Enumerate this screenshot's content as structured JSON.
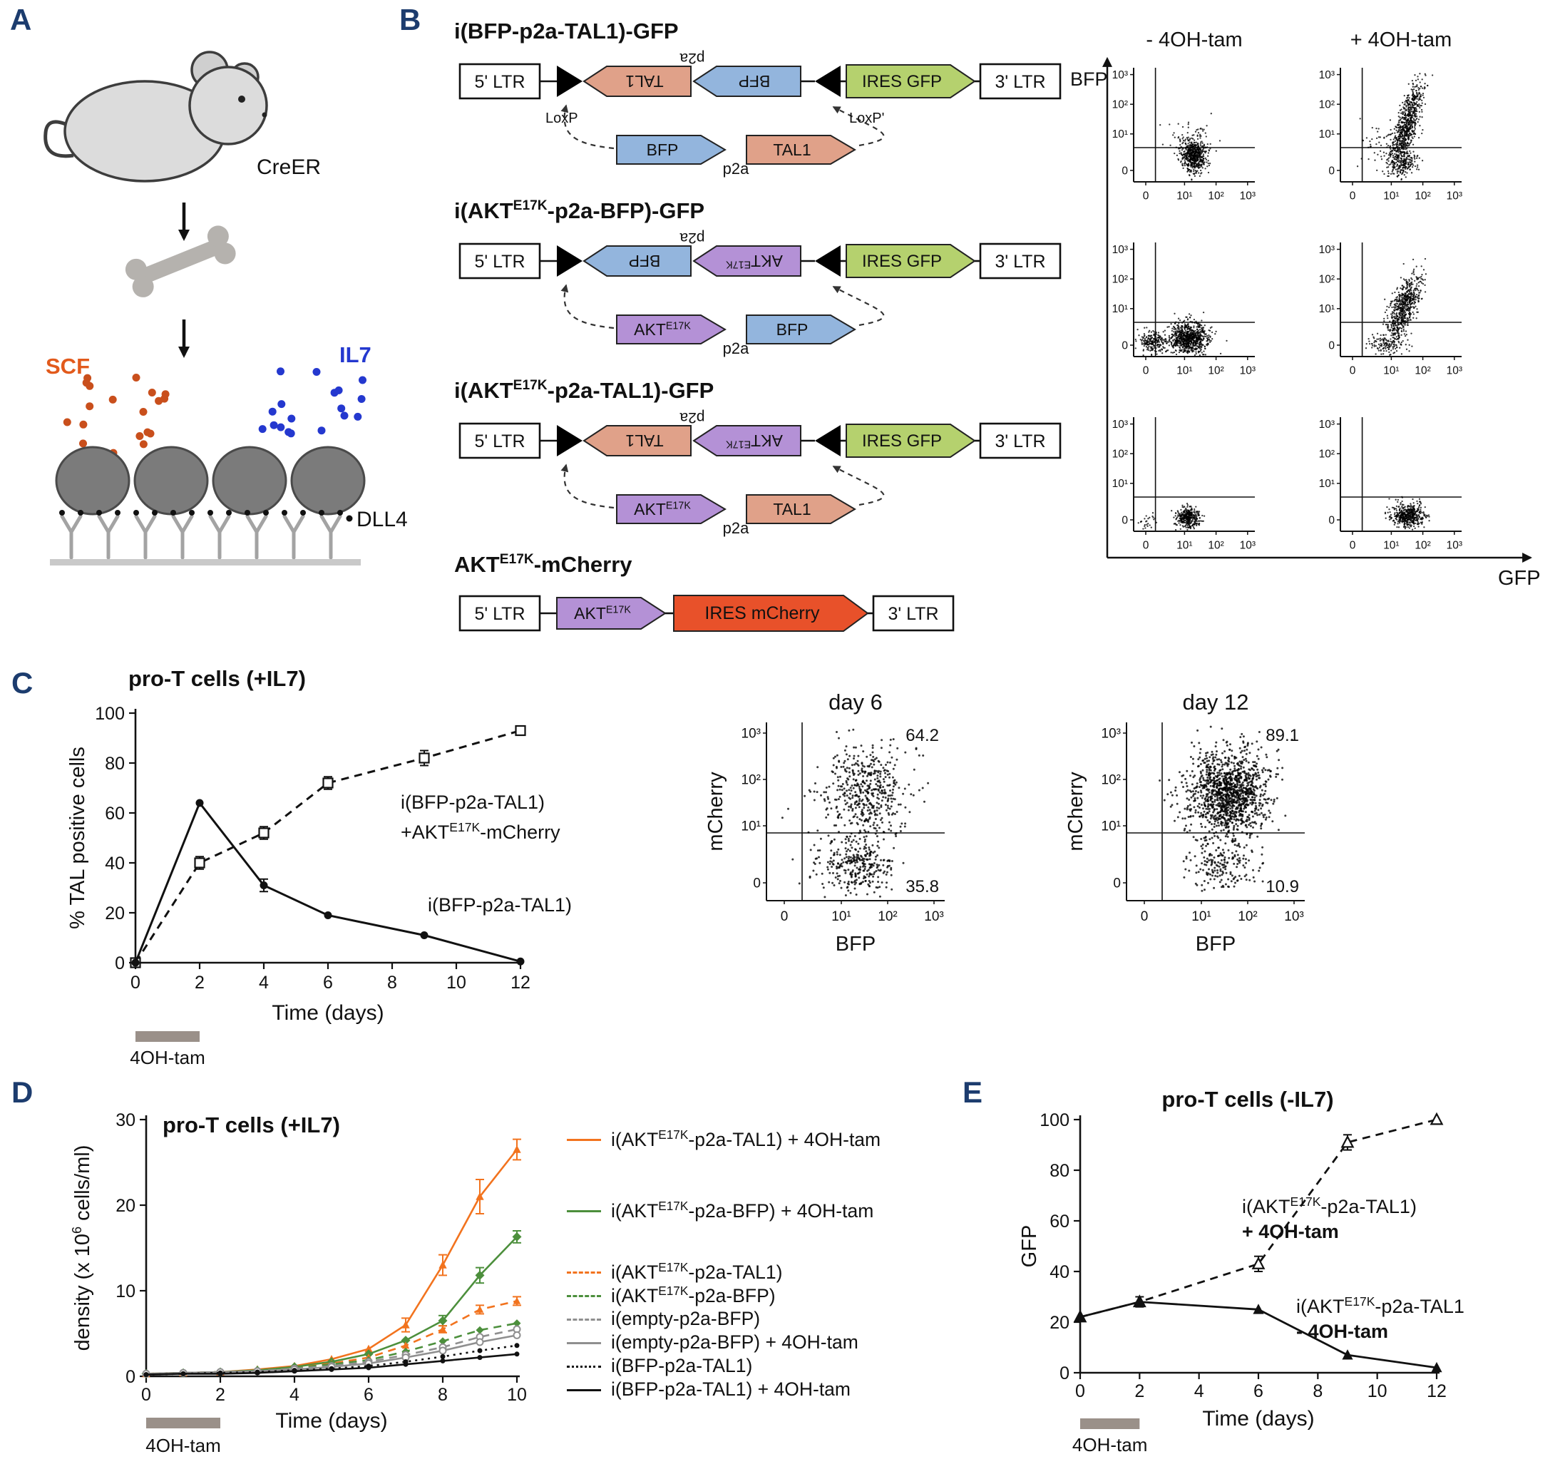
{
  "colors": {
    "panel_label": "#1C3C6E",
    "scf": "#E25A1C",
    "scf_dot": "#C94F1C",
    "il7": "#2438CF",
    "il7_dot": "#2438CF",
    "bfp": "#93B5DD",
    "tal1": "#E0A189",
    "akt": "#B491D6",
    "gfp_arrow": "#B5D16E",
    "mcherry_arrow": "#E8512A",
    "tam_bar": "#9A9089",
    "series_orange": "#F2731E",
    "series_green": "#4C8F3C",
    "series_gray": "#8F8F8F",
    "series_black": "#111111"
  },
  "panels": {
    "A": {
      "label": "A",
      "creer": "CreER",
      "scf": "SCF",
      "il7": "IL7",
      "dll4": "DLL4"
    },
    "B": {
      "label": "B",
      "constructs": [
        {
          "title": "i(BFP-p2a-TAL1)-GFP",
          "ltr5": "5' LTR",
          "ltr3": "3' LTR",
          "p2a": "p2a",
          "inverted": [
            {
              "label": "TAL1",
              "color": "#E0A189"
            },
            {
              "label": "BFP",
              "color": "#93B5DD"
            }
          ],
          "ires": {
            "label": "IRES GFP",
            "color": "#B5D16E"
          },
          "flipped": [
            {
              "label": "BFP",
              "color": "#93B5DD"
            },
            {
              "label": "TAL1",
              "color": "#E0A189"
            }
          ],
          "loxp": [
            "LoxP",
            "LoxP'"
          ]
        },
        {
          "title": "i(AKT^{E17K}-p2a-BFP)-GFP",
          "ltr5": "5' LTR",
          "ltr3": "3' LTR",
          "p2a": "p2a",
          "inverted": [
            {
              "label": "BFP",
              "color": "#93B5DD"
            },
            {
              "label": "AKT^{E17K}",
              "color": "#B491D6"
            }
          ],
          "ires": {
            "label": "IRES GFP",
            "color": "#B5D16E"
          },
          "flipped": [
            {
              "label": "AKT^{E17K}",
              "color": "#B491D6"
            },
            {
              "label": "BFP",
              "color": "#93B5DD"
            }
          ]
        },
        {
          "title": "i(AKT^{E17K}-p2a-TAL1)-GFP",
          "ltr5": "5' LTR",
          "ltr3": "3' LTR",
          "p2a": "p2a",
          "inverted": [
            {
              "label": "TAL1",
              "color": "#E0A189"
            },
            {
              "label": "AKT^{E17K}",
              "color": "#B491D6"
            }
          ],
          "ires": {
            "label": "IRES GFP",
            "color": "#B5D16E"
          },
          "flipped": [
            {
              "label": "AKT^{E17K}",
              "color": "#B491D6"
            },
            {
              "label": "TAL1",
              "color": "#E0A189"
            }
          ]
        },
        {
          "title": "AKT^{E17K}-mCherry",
          "ltr5": "5' LTR",
          "ltr3": "3' LTR",
          "simple": [
            {
              "label": "AKT^{E17K}",
              "color": "#B491D6"
            }
          ],
          "ires": {
            "label": "IRES mCherry",
            "color": "#E8512A"
          }
        }
      ],
      "flow": {
        "col_headers": [
          "- 4OH-tam",
          "+ 4OH-tam"
        ],
        "y_axis": "BFP",
        "x_axis": "GFP"
      }
    },
    "C": {
      "label": "C",
      "title": "pro-T cells (+IL7)",
      "ann1_line1": "i(BFP-p2a-TAL1)",
      "ann1_line2": "+AKT^{E17K}-mCherry",
      "ann2": "i(BFP-p2a-TAL1)"
    },
    "D": {
      "label": "D",
      "title": "pro-T cells (+IL7)",
      "legend": [
        {
          "label": "i(AKT^{E17K}-p2a-TAL1) + 4OH-tam",
          "color": "#F2731E",
          "style": "solid"
        },
        {
          "label": "i(AKT^{E17K}-p2a-BFP) + 4OH-tam",
          "color": "#4C8F3C",
          "style": "solid"
        },
        {
          "label": "i(AKT^{E17K}-p2a-TAL1)",
          "color": "#F2731E",
          "style": "dashed"
        },
        {
          "label": "i(AKT^{E17K}-p2a-BFP)",
          "color": "#4C8F3C",
          "style": "dashed"
        },
        {
          "label": "i(empty-p2a-BFP)",
          "color": "#8F8F8F",
          "style": "dashed"
        },
        {
          "label": "i(empty-p2a-BFP) + 4OH-tam",
          "color": "#8F8F8F",
          "style": "solid"
        },
        {
          "label": "i(BFP-p2a-TAL1)",
          "color": "#111111",
          "style": "dotted"
        },
        {
          "label": "i(BFP-p2a-TAL1) + 4OH-tam",
          "color": "#111111",
          "style": "solid"
        }
      ]
    },
    "E": {
      "label": "E",
      "title": "pro-T cells (-IL7)",
      "ann1_line1": "i(AKT^{E17K}-p2a-TAL1)",
      "ann1_line2": "+ 4OH-tam",
      "ann2_line1": "i(AKT^{E17K}-p2a-TAL1",
      "ann2_line2": "- 4OH-tam"
    }
  },
  "chart_data": [
    {
      "id": "chartC",
      "type": "line",
      "title": "pro-T cells (+IL7)",
      "xlabel": "Time (days)",
      "ylabel": "% TAL positive cells",
      "xlim": [
        0,
        12
      ],
      "ylim": [
        0,
        100
      ],
      "xticks": [
        0,
        2,
        4,
        6,
        8,
        10,
        12
      ],
      "yticks": [
        0,
        20,
        40,
        60,
        80,
        100
      ],
      "tam_bar": {
        "from": 0,
        "to": 2,
        "label": "4OH-tam"
      },
      "series": [
        {
          "name": "i(BFP-p2a-TAL1) + AKT^{E17K}-mCherry",
          "color": "#111111",
          "line_style": "dashed",
          "marker": "square-open",
          "msize": 6.5,
          "x": [
            0,
            2,
            4,
            6,
            9,
            12
          ],
          "y": [
            0,
            40,
            52,
            72,
            82,
            93
          ],
          "err": [
            0,
            2.5,
            2.5,
            2.5,
            3,
            1.5
          ]
        },
        {
          "name": "i(BFP-p2a-TAL1)",
          "color": "#111111",
          "line_style": "solid",
          "marker": "circle-filled",
          "msize": 5.5,
          "x": [
            0,
            2,
            4,
            6,
            9,
            12
          ],
          "y": [
            0,
            64,
            31,
            19,
            11,
            0.5
          ],
          "err": [
            0,
            0,
            2.5,
            0,
            0,
            0
          ]
        }
      ]
    },
    {
      "id": "chartD",
      "type": "line",
      "title": "pro-T cells (+IL7)",
      "xlabel": "Time (days)",
      "ylabel": "density (x 10^{6} cells/ml)",
      "xlim": [
        0,
        10
      ],
      "ylim": [
        0,
        30
      ],
      "xticks": [
        0,
        2,
        4,
        6,
        8,
        10
      ],
      "yticks": [
        0,
        10,
        20,
        30
      ],
      "tam_bar": {
        "from": 0,
        "to": 2,
        "label": "4OH-tam"
      },
      "x": [
        0,
        1,
        2,
        3,
        4,
        5,
        6,
        7,
        8,
        9,
        10
      ],
      "series": [
        {
          "name": "i(AKT^{E17K}-p2a-TAL1) + 4OH-tam",
          "color": "#F2731E",
          "line_style": "solid",
          "marker": "triangle-filled",
          "msize": 6,
          "y": [
            0.3,
            0.4,
            0.5,
            0.8,
            1.2,
            2,
            3.2,
            6,
            13,
            21,
            26.5
          ],
          "err": [
            0,
            0,
            0,
            0,
            0,
            0,
            0,
            0.8,
            1.2,
            2,
            1.2
          ]
        },
        {
          "name": "i(AKT^{E17K}-p2a-BFP) + 4OH-tam",
          "color": "#4C8F3C",
          "line_style": "solid",
          "marker": "diamond-filled",
          "msize": 6.5,
          "y": [
            0.3,
            0.4,
            0.5,
            0.7,
            1.1,
            1.7,
            2.6,
            4.2,
            6.5,
            11.8,
            16.3
          ],
          "err": [
            0,
            0,
            0,
            0,
            0,
            0,
            0,
            0,
            0.6,
            0.9,
            0.7
          ]
        },
        {
          "name": "i(AKT^{E17K}-p2a-TAL1)",
          "color": "#F2731E",
          "line_style": "dashed",
          "marker": "triangle-filled",
          "msize": 5.5,
          "y": [
            0.3,
            0.4,
            0.5,
            0.7,
            1,
            1.5,
            2.2,
            3.6,
            5.5,
            7.8,
            8.8
          ],
          "err": [
            0,
            0,
            0,
            0,
            0,
            0,
            0,
            0,
            0.4,
            0.5,
            0.5
          ]
        },
        {
          "name": "i(AKT^{E17K}-p2a-BFP)",
          "color": "#4C8F3C",
          "line_style": "dashed",
          "marker": "diamond-filled",
          "msize": 5.5,
          "y": [
            0.3,
            0.4,
            0.5,
            0.7,
            1,
            1.4,
            1.9,
            2.9,
            4.1,
            5.4,
            6.2
          ]
        },
        {
          "name": "i(empty-p2a-BFP)",
          "color": "#8F8F8F",
          "line_style": "dashed",
          "marker": "circle-open",
          "msize": 4.5,
          "y": [
            0.3,
            0.4,
            0.5,
            0.6,
            0.9,
            1.2,
            1.7,
            2.5,
            3.4,
            4.6,
            5.5
          ]
        },
        {
          "name": "i(empty-p2a-BFP) + 4OH-tam",
          "color": "#8F8F8F",
          "line_style": "solid",
          "marker": "circle-open",
          "msize": 4.5,
          "y": [
            0.3,
            0.4,
            0.5,
            0.6,
            0.8,
            1.1,
            1.5,
            2.2,
            3,
            4,
            4.8
          ]
        },
        {
          "name": "i(BFP-p2a-TAL1)",
          "color": "#111111",
          "line_style": "dotted",
          "marker": "circle-filled",
          "msize": 3.5,
          "y": [
            0.2,
            0.3,
            0.4,
            0.5,
            0.7,
            0.9,
            1.2,
            1.7,
            2.3,
            3,
            3.6
          ]
        },
        {
          "name": "i(BFP-p2a-TAL1) + 4OH-tam",
          "color": "#111111",
          "line_style": "solid",
          "marker": "circle-filled",
          "msize": 3.5,
          "y": [
            0.2,
            0.3,
            0.3,
            0.4,
            0.6,
            0.8,
            1,
            1.4,
            1.8,
            2.2,
            2.6
          ]
        }
      ]
    },
    {
      "id": "chartE",
      "type": "line",
      "title": "pro-T cells (-IL7)",
      "xlabel": "Time (days)",
      "ylabel": "GFP",
      "xlim": [
        0,
        12
      ],
      "ylim": [
        0,
        100
      ],
      "xticks": [
        0,
        2,
        4,
        6,
        8,
        10,
        12
      ],
      "yticks": [
        0,
        20,
        40,
        60,
        80,
        100
      ],
      "tam_bar": {
        "from": 0,
        "to": 2,
        "label": "4OH-tam"
      },
      "series": [
        {
          "name": "i(AKT^{E17K}-p2a-TAL1) + 4OH-tam",
          "color": "#111111",
          "line_style": "dashed",
          "marker": "triangle-open",
          "msize": 8,
          "x": [
            0,
            2,
            6,
            9,
            12
          ],
          "y": [
            22,
            28,
            43,
            91,
            100
          ],
          "err": [
            0,
            2,
            3,
            3,
            0
          ]
        },
        {
          "name": "i(AKT^{E17K}-p2a-TAL1) - 4OH-tam",
          "color": "#111111",
          "line_style": "solid",
          "marker": "triangle-filled",
          "msize": 8,
          "x": [
            0,
            2,
            6,
            9,
            12
          ],
          "y": [
            22,
            28,
            25,
            7,
            2
          ]
        }
      ]
    },
    {
      "id": "flow_b1_neg",
      "type": "scatter",
      "tick_labels": [
        "0",
        "10¹",
        "10²",
        "10³"
      ],
      "gate": {
        "x": 0.18,
        "y": 0.3
      },
      "clusters": [
        {
          "cx": 0.5,
          "cy": 0.22,
          "sx": 0.05,
          "sy": 0.07,
          "rot": 0,
          "n": 550
        },
        {
          "cx": 0.47,
          "cy": 0.36,
          "sx": 0.09,
          "sy": 0.08,
          "rot": 0,
          "n": 80
        }
      ]
    },
    {
      "id": "flow_b1_pos",
      "type": "scatter",
      "tick_labels": [
        "0",
        "10¹",
        "10²",
        "10³"
      ],
      "gate": {
        "x": 0.18,
        "y": 0.3
      },
      "clusters": [
        {
          "cx": 0.55,
          "cy": 0.5,
          "sx": 0.042,
          "sy": 0.2,
          "rot": -15,
          "n": 720
        },
        {
          "cx": 0.52,
          "cy": 0.17,
          "sx": 0.055,
          "sy": 0.06,
          "rot": 0,
          "n": 200
        },
        {
          "cx": 0.32,
          "cy": 0.3,
          "sx": 0.09,
          "sy": 0.09,
          "rot": 0,
          "n": 45
        }
      ]
    },
    {
      "id": "flow_b2_neg",
      "type": "scatter",
      "tick_labels": [
        "0",
        "10¹",
        "10²",
        "10³"
      ],
      "gate": {
        "x": 0.18,
        "y": 0.3
      },
      "clusters": [
        {
          "cx": 0.45,
          "cy": 0.16,
          "sx": 0.085,
          "sy": 0.07,
          "rot": 0,
          "n": 820
        },
        {
          "cx": 0.16,
          "cy": 0.12,
          "sx": 0.06,
          "sy": 0.05,
          "rot": 0,
          "n": 200
        }
      ]
    },
    {
      "id": "flow_b2_pos",
      "type": "scatter",
      "tick_labels": [
        "0",
        "10¹",
        "10²",
        "10³"
      ],
      "gate": {
        "x": 0.18,
        "y": 0.3
      },
      "clusters": [
        {
          "cx": 0.52,
          "cy": 0.42,
          "sx": 0.05,
          "sy": 0.16,
          "rot": -18,
          "n": 660
        },
        {
          "cx": 0.38,
          "cy": 0.1,
          "sx": 0.09,
          "sy": 0.045,
          "rot": 0,
          "n": 110
        }
      ]
    },
    {
      "id": "flow_b3_neg",
      "type": "scatter",
      "tick_labels": [
        "0",
        "10¹",
        "10²",
        "10³"
      ],
      "gate": {
        "x": 0.18,
        "y": 0.3
      },
      "clusters": [
        {
          "cx": 0.45,
          "cy": 0.12,
          "sx": 0.05,
          "sy": 0.045,
          "rot": 0,
          "n": 360
        },
        {
          "cx": 0.12,
          "cy": 0.1,
          "sx": 0.045,
          "sy": 0.04,
          "rot": 0,
          "n": 25
        }
      ]
    },
    {
      "id": "flow_b3_pos",
      "type": "scatter",
      "tick_labels": [
        "0",
        "10¹",
        "10²",
        "10³"
      ],
      "gate": {
        "x": 0.18,
        "y": 0.3
      },
      "clusters": [
        {
          "cx": 0.56,
          "cy": 0.14,
          "sx": 0.07,
          "sy": 0.055,
          "rot": 0,
          "n": 480
        }
      ]
    },
    {
      "id": "flow_day6",
      "type": "scatter",
      "title": "day 6",
      "xlabel": "BFP",
      "ylabel": "mCherry",
      "tick_labels": [
        "0",
        "10¹",
        "10²",
        "10³"
      ],
      "gate": {
        "x": 0.2,
        "y": 0.38
      },
      "corner_values": [
        {
          "label": "64.2",
          "corner": "tr"
        },
        {
          "label": "35.8",
          "corner": "br"
        }
      ],
      "clusters": [
        {
          "cx": 0.56,
          "cy": 0.62,
          "sx": 0.12,
          "sy": 0.13,
          "rot": 0,
          "n": 480
        },
        {
          "cx": 0.5,
          "cy": 0.2,
          "sx": 0.11,
          "sy": 0.08,
          "rot": 0,
          "n": 310
        }
      ]
    },
    {
      "id": "flow_day12",
      "type": "scatter",
      "title": "day 12",
      "xlabel": "BFP",
      "ylabel": "mCherry",
      "tick_labels": [
        "0",
        "10¹",
        "10²",
        "10³"
      ],
      "gate": {
        "x": 0.2,
        "y": 0.38
      },
      "corner_values": [
        {
          "label": "89.1",
          "corner": "tr"
        },
        {
          "label": "10.9",
          "corner": "br"
        }
      ],
      "clusters": [
        {
          "cx": 0.57,
          "cy": 0.6,
          "sx": 0.115,
          "sy": 0.125,
          "rot": 0,
          "n": 1250
        },
        {
          "cx": 0.52,
          "cy": 0.2,
          "sx": 0.1,
          "sy": 0.07,
          "rot": 0,
          "n": 170
        }
      ]
    }
  ]
}
